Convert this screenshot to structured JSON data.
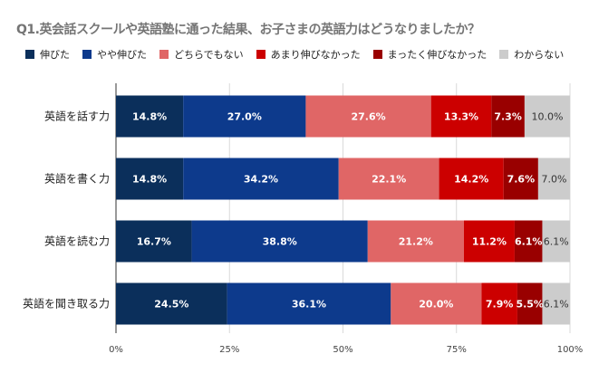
{
  "chart_data": {
    "type": "bar",
    "orientation": "horizontal",
    "stacked": "percent",
    "title": "Q1.英会話スクールや英語塾に通った結果、お子さまの英語力はどうなりましたか？",
    "categories": [
      "英語を話す力",
      "英語を書く力",
      "英語を読む力",
      "英語を聞き取る力"
    ],
    "series": [
      {
        "name": "伸びた",
        "color": "#0b2f5b",
        "values": [
          14.8,
          14.8,
          16.7,
          24.5
        ]
      },
      {
        "name": "やや伸びた",
        "color": "#0d3a8c",
        "values": [
          27.0,
          34.2,
          38.8,
          36.1
        ]
      },
      {
        "name": "どちらでもない",
        "color": "#e06666",
        "values": [
          27.6,
          22.1,
          21.2,
          20.0
        ]
      },
      {
        "name": "あまり伸びなかった",
        "color": "#cc0000",
        "values": [
          13.3,
          14.2,
          11.2,
          7.9
        ]
      },
      {
        "name": "まったく伸びなかった",
        "color": "#990000",
        "values": [
          7.3,
          7.6,
          6.1,
          5.5
        ]
      },
      {
        "name": "わからない",
        "color": "#cccccc",
        "values": [
          10.0,
          7.0,
          6.1,
          6.1
        ]
      }
    ],
    "xticks": [
      "0%",
      "25%",
      "50%",
      "75%",
      "100%"
    ],
    "xlim": [
      0,
      100
    ],
    "grid": true,
    "legend": "top"
  }
}
